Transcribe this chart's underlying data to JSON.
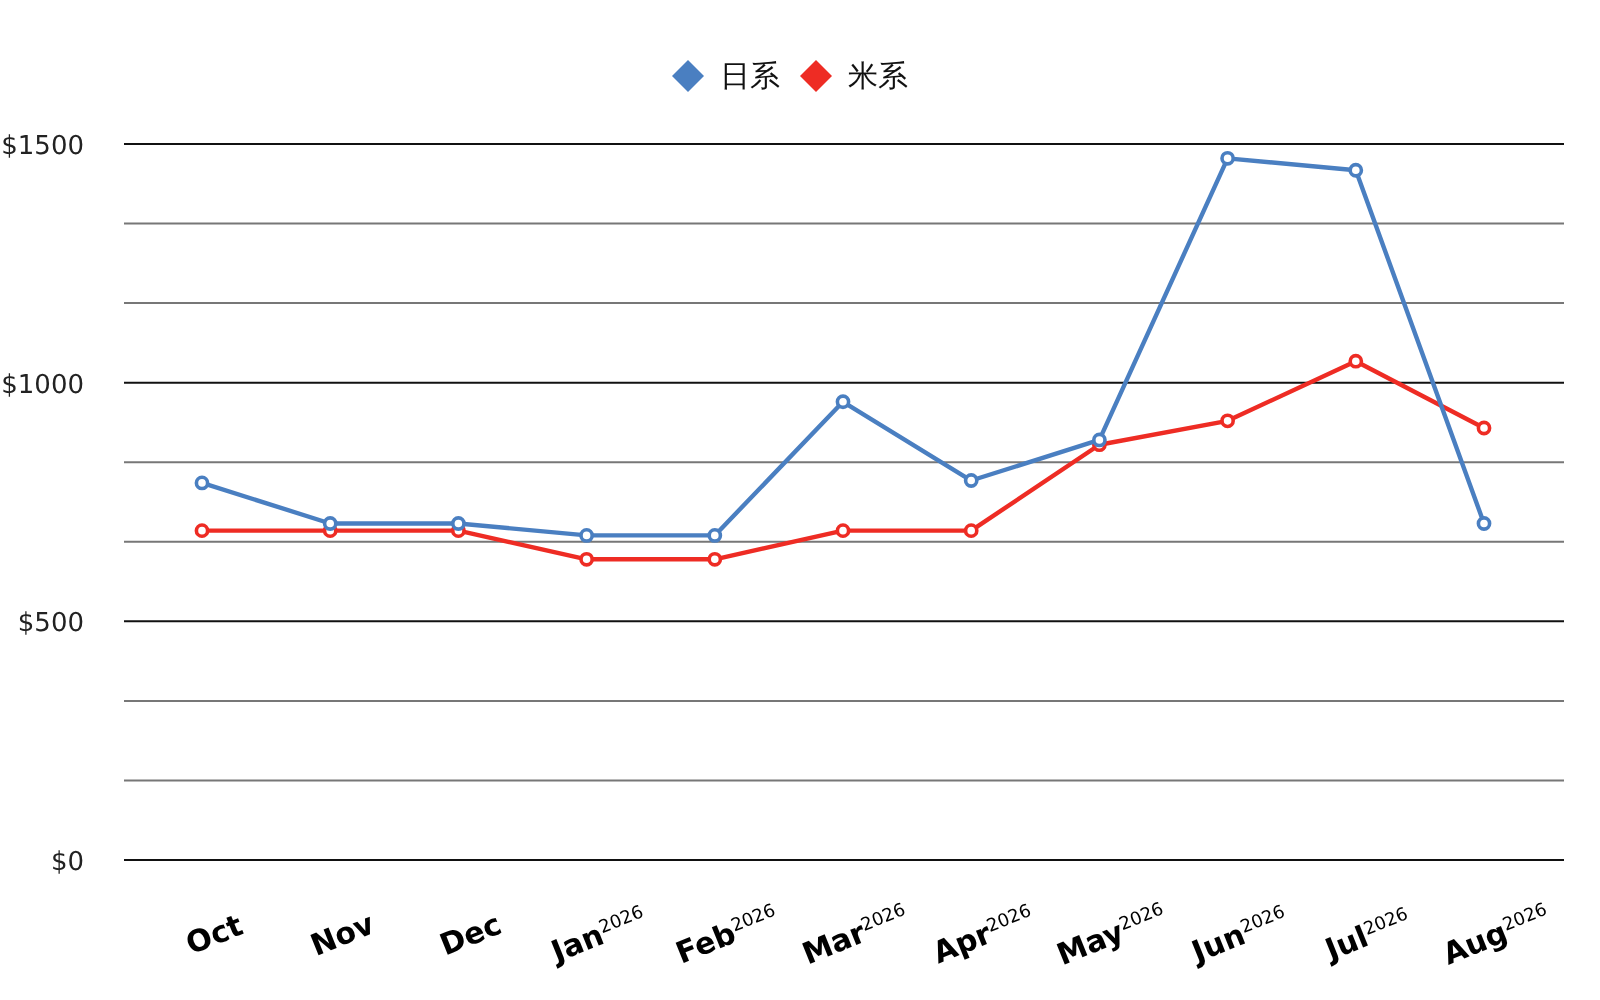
{
  "chart_data": {
    "type": "line",
    "categories": [
      "Oct",
      "Nov",
      "Dec",
      "Jan$^{2026}$",
      "Feb$^{2026}$",
      "Mar$^{2026}$",
      "Apr$^{2026}$",
      "May$^{2026}$",
      "Jun$^{2026}$",
      "Jul$^{2026}$",
      "Aug$^{2026}$"
    ],
    "series": [
      {
        "name": "日系",
        "color": "#4a7fc1",
        "values": [
          790,
          705,
          705,
          680,
          680,
          960,
          795,
          880,
          1470,
          1445,
          705
        ]
      },
      {
        "name": "米系",
        "color": "#ee2c24",
        "values": [
          690,
          690,
          690,
          630,
          630,
          690,
          690,
          870,
          920,
          1045,
          905
        ]
      }
    ],
    "ylim": [
      0,
      1500
    ],
    "yticks": [
      {
        "value": 0,
        "label": "$0"
      },
      {
        "value": 166.67,
        "label": null
      },
      {
        "value": 333.33,
        "label": null
      },
      {
        "value": 500,
        "label": "$500"
      },
      {
        "value": 666.67,
        "label": null
      },
      {
        "value": 833.33,
        "label": null
      },
      {
        "value": 1000,
        "label": "$1000"
      },
      {
        "value": 1166.67,
        "label": null
      },
      {
        "value": 1333.33,
        "label": null
      },
      {
        "value": 1500,
        "label": "$1500"
      }
    ],
    "grid": "y",
    "legend": "top",
    "marker": "circle",
    "line_style": "solid"
  }
}
